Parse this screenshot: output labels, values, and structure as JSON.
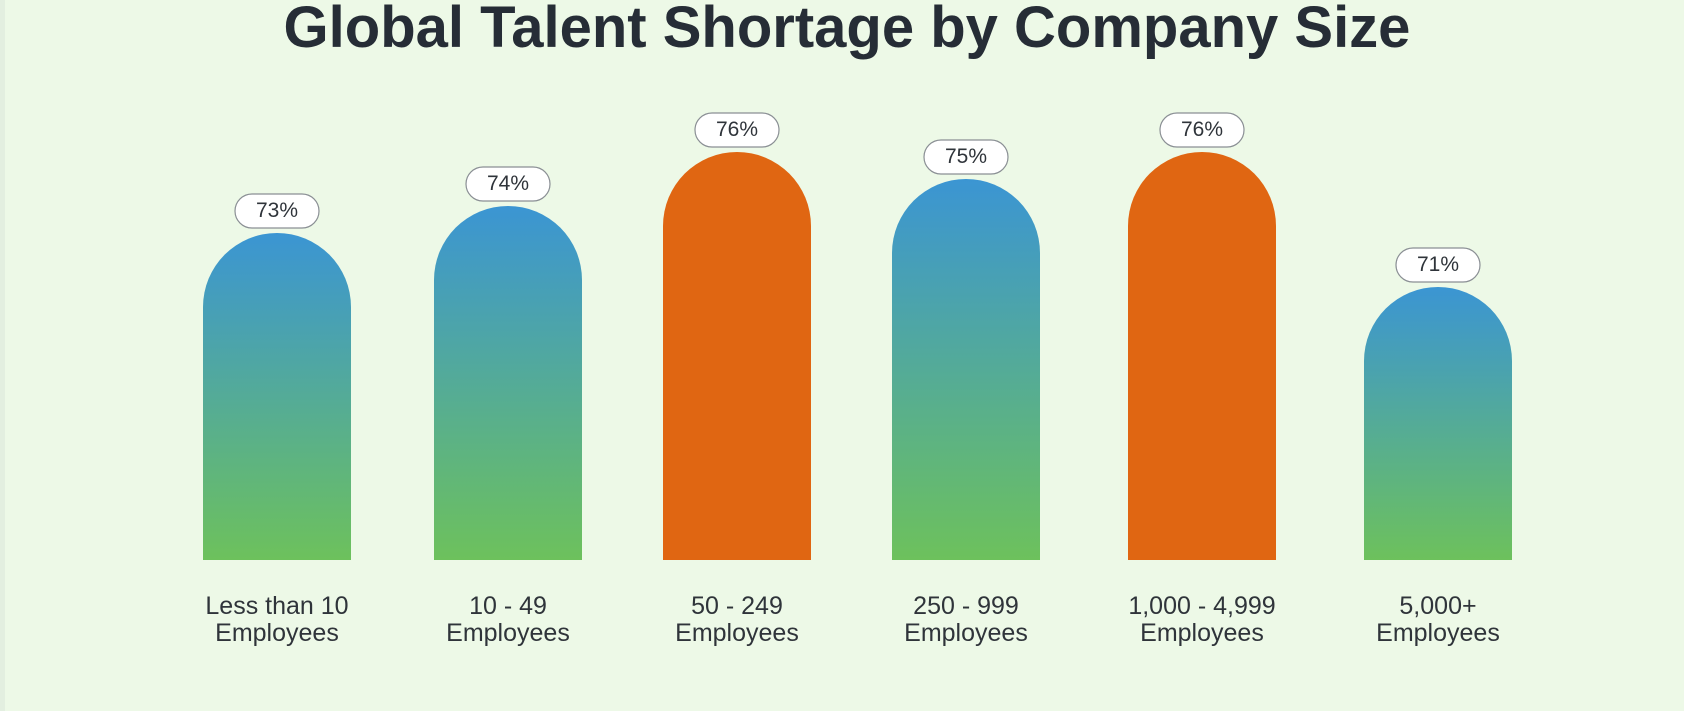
{
  "title": "Global Talent Shortage by Company Size",
  "colors": {
    "gradient_top": "#3b95d3",
    "gradient_bottom": "#6dc15c",
    "highlight": "#e06612",
    "background": "#edf9e7",
    "title": "#262d36",
    "label": "#2f343a"
  },
  "chart_data": {
    "type": "bar",
    "title": "Global Talent Shortage by Company Size",
    "xlabel": "",
    "ylabel": "",
    "unit": "%",
    "categories": [
      [
        "Less than 10",
        "Employees"
      ],
      [
        "10 - 49",
        "Employees"
      ],
      [
        "50 - 249",
        "Employees"
      ],
      [
        "250 - 999",
        "Employees"
      ],
      [
        "1,000 - 4,999",
        "Employees"
      ],
      [
        "5,000+",
        "Employees"
      ]
    ],
    "values": [
      73,
      74,
      76,
      75,
      76,
      71
    ],
    "value_labels": [
      "73%",
      "74%",
      "76%",
      "75%",
      "76%",
      "71%"
    ],
    "highlighted": [
      false,
      false,
      true,
      false,
      true,
      false
    ],
    "grid": false,
    "legend": "none"
  }
}
